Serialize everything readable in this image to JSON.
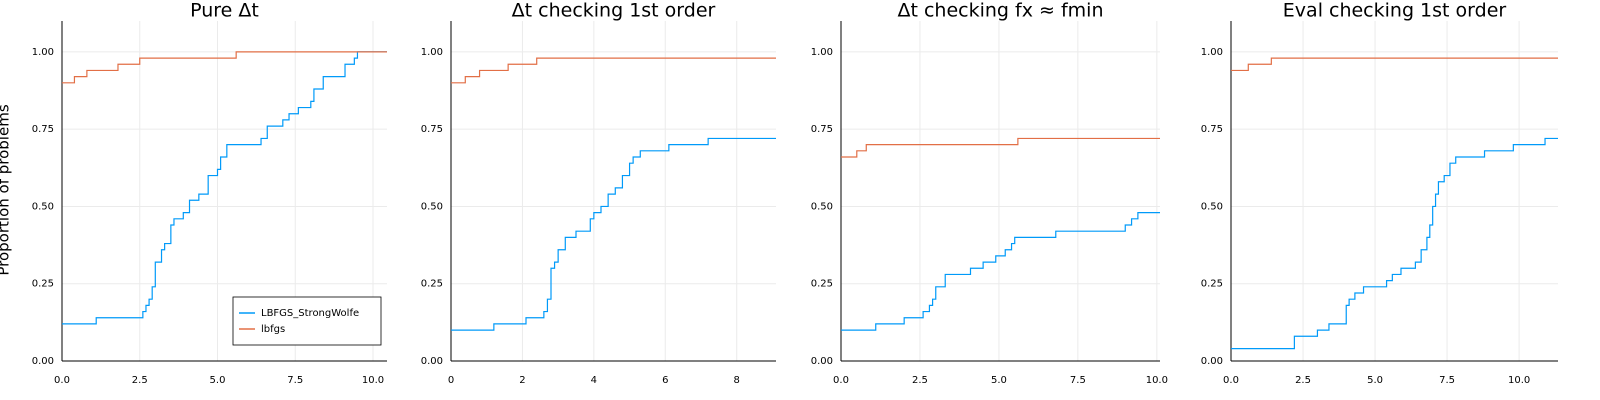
{
  "chart_data": [
    {
      "type": "line",
      "title": "Pure Δt",
      "ylabel": "Proportion of problems",
      "drawstyle": "steps-post",
      "grid": true,
      "legend": "bottom right",
      "xlim": [
        0,
        10.45
      ],
      "ylim": [
        0,
        1.1
      ],
      "xticks": [
        {
          "value": 0,
          "label": "0.0"
        },
        {
          "value": 2.5,
          "label": "2.5"
        },
        {
          "value": 5,
          "label": "5.0"
        },
        {
          "value": 7.5,
          "label": "7.5"
        },
        {
          "value": 10,
          "label": "10.0"
        }
      ],
      "yticks": [
        {
          "value": 0,
          "label": "0.00"
        },
        {
          "value": 0.25,
          "label": "0.25"
        },
        {
          "value": 0.5,
          "label": "0.50"
        },
        {
          "value": 0.75,
          "label": "0.75"
        },
        {
          "value": 1,
          "label": "1.00"
        }
      ],
      "series": [
        {
          "name": "LBFGS_StrongWolfe",
          "color": "#009af9",
          "x": [
            0,
            1.1,
            2.6,
            2.7,
            2.8,
            2.9,
            3.0,
            3.2,
            3.3,
            3.5,
            3.6,
            3.9,
            4.1,
            4.4,
            4.7,
            5.0,
            5.1,
            5.3,
            6.4,
            6.6,
            7.1,
            7.3,
            7.6,
            8.0,
            8.1,
            8.4,
            9.1,
            9.4,
            9.5,
            10.45
          ],
          "values": [
            0.12,
            0.14,
            0.16,
            0.18,
            0.2,
            0.24,
            0.32,
            0.36,
            0.38,
            0.44,
            0.46,
            0.48,
            0.52,
            0.54,
            0.6,
            0.62,
            0.66,
            0.7,
            0.72,
            0.76,
            0.78,
            0.8,
            0.82,
            0.84,
            0.88,
            0.92,
            0.96,
            0.98,
            1.0,
            1.0
          ]
        },
        {
          "name": "lbfgs",
          "color": "#e26f46",
          "x": [
            0,
            0.4,
            0.8,
            1.8,
            2.5,
            5.6,
            10.45
          ],
          "values": [
            0.9,
            0.92,
            0.94,
            0.96,
            0.98,
            1.0,
            1.0
          ]
        }
      ]
    },
    {
      "type": "line",
      "title": "Δt checking 1st order",
      "drawstyle": "steps-post",
      "grid": true,
      "xlim": [
        0,
        9.1
      ],
      "ylim": [
        0,
        1.1
      ],
      "xticks": [
        0,
        2,
        4,
        6,
        8
      ],
      "yticks": [
        {
          "value": 0,
          "label": "0.00"
        },
        {
          "value": 0.25,
          "label": "0.25"
        },
        {
          "value": 0.5,
          "label": "0.50"
        },
        {
          "value": 0.75,
          "label": "0.75"
        },
        {
          "value": 1,
          "label": "1.00"
        }
      ],
      "series": [
        {
          "color": "#009af9",
          "x": [
            0,
            1.2,
            2.1,
            2.6,
            2.7,
            2.8,
            2.9,
            3.0,
            3.2,
            3.5,
            3.9,
            4.0,
            4.2,
            4.4,
            4.6,
            4.8,
            5.0,
            5.1,
            5.3,
            6.1,
            7.2,
            8.4,
            9.1
          ],
          "values": [
            0.1,
            0.12,
            0.14,
            0.16,
            0.2,
            0.3,
            0.32,
            0.36,
            0.4,
            0.42,
            0.46,
            0.48,
            0.5,
            0.54,
            0.56,
            0.6,
            0.64,
            0.66,
            0.68,
            0.7,
            0.72,
            0.72,
            0.72
          ]
        },
        {
          "color": "#e26f46",
          "x": [
            0,
            0.4,
            0.8,
            1.6,
            2.4,
            9.1
          ],
          "values": [
            0.9,
            0.92,
            0.94,
            0.96,
            0.98,
            0.98
          ]
        }
      ]
    },
    {
      "type": "line",
      "title": "Δt checking fx ≈ fmin",
      "drawstyle": "steps-post",
      "grid": true,
      "xlim": [
        0,
        10.1
      ],
      "ylim": [
        0,
        1.1
      ],
      "xticks": [
        {
          "value": 0,
          "label": "0.0"
        },
        {
          "value": 2.5,
          "label": "2.5"
        },
        {
          "value": 5,
          "label": "5.0"
        },
        {
          "value": 7.5,
          "label": "7.5"
        },
        {
          "value": 10,
          "label": "10.0"
        }
      ],
      "yticks": [
        {
          "value": 0,
          "label": "0.00"
        },
        {
          "value": 0.25,
          "label": "0.25"
        },
        {
          "value": 0.5,
          "label": "0.50"
        },
        {
          "value": 0.75,
          "label": "0.75"
        },
        {
          "value": 1,
          "label": "1.00"
        }
      ],
      "series": [
        {
          "color": "#009af9",
          "x": [
            0,
            1.1,
            2.0,
            2.6,
            2.8,
            2.9,
            3.0,
            3.3,
            4.1,
            4.5,
            4.9,
            5.2,
            5.4,
            5.5,
            6.8,
            9.0,
            9.2,
            9.4,
            10.1
          ],
          "values": [
            0.1,
            0.12,
            0.14,
            0.16,
            0.18,
            0.2,
            0.24,
            0.28,
            0.3,
            0.32,
            0.34,
            0.36,
            0.38,
            0.4,
            0.42,
            0.44,
            0.46,
            0.48,
            0.48
          ]
        },
        {
          "color": "#e26f46",
          "x": [
            0,
            0.5,
            0.8,
            5.6,
            10.1
          ],
          "values": [
            0.66,
            0.68,
            0.7,
            0.72,
            0.72
          ]
        }
      ]
    },
    {
      "type": "line",
      "title": "Eval checking 1st order",
      "drawstyle": "steps-post",
      "grid": true,
      "xlim": [
        0,
        11.35
      ],
      "ylim": [
        0,
        1.1
      ],
      "xticks": [
        {
          "value": 0,
          "label": "0.0"
        },
        {
          "value": 2.5,
          "label": "2.5"
        },
        {
          "value": 5,
          "label": "5.0"
        },
        {
          "value": 7.5,
          "label": "7.5"
        },
        {
          "value": 10,
          "label": "10.0"
        }
      ],
      "yticks": [
        {
          "value": 0,
          "label": "0.00"
        },
        {
          "value": 0.25,
          "label": "0.25"
        },
        {
          "value": 0.5,
          "label": "0.50"
        },
        {
          "value": 0.75,
          "label": "0.75"
        },
        {
          "value": 1,
          "label": "1.00"
        }
      ],
      "series": [
        {
          "color": "#009af9",
          "x": [
            0,
            2.2,
            3.0,
            3.4,
            4.0,
            4.1,
            4.3,
            4.6,
            5.4,
            5.6,
            5.9,
            6.4,
            6.6,
            6.8,
            6.9,
            7.0,
            7.1,
            7.2,
            7.4,
            7.6,
            7.8,
            8.8,
            9.8,
            10.9,
            11.35
          ],
          "values": [
            0.04,
            0.08,
            0.1,
            0.12,
            0.18,
            0.2,
            0.22,
            0.24,
            0.26,
            0.28,
            0.3,
            0.32,
            0.36,
            0.4,
            0.44,
            0.5,
            0.54,
            0.58,
            0.6,
            0.64,
            0.66,
            0.68,
            0.7,
            0.72,
            0.72
          ]
        },
        {
          "color": "#e26f46",
          "x": [
            0,
            0.6,
            1.4,
            11.35
          ],
          "values": [
            0.94,
            0.96,
            0.98,
            0.98
          ]
        }
      ]
    }
  ]
}
